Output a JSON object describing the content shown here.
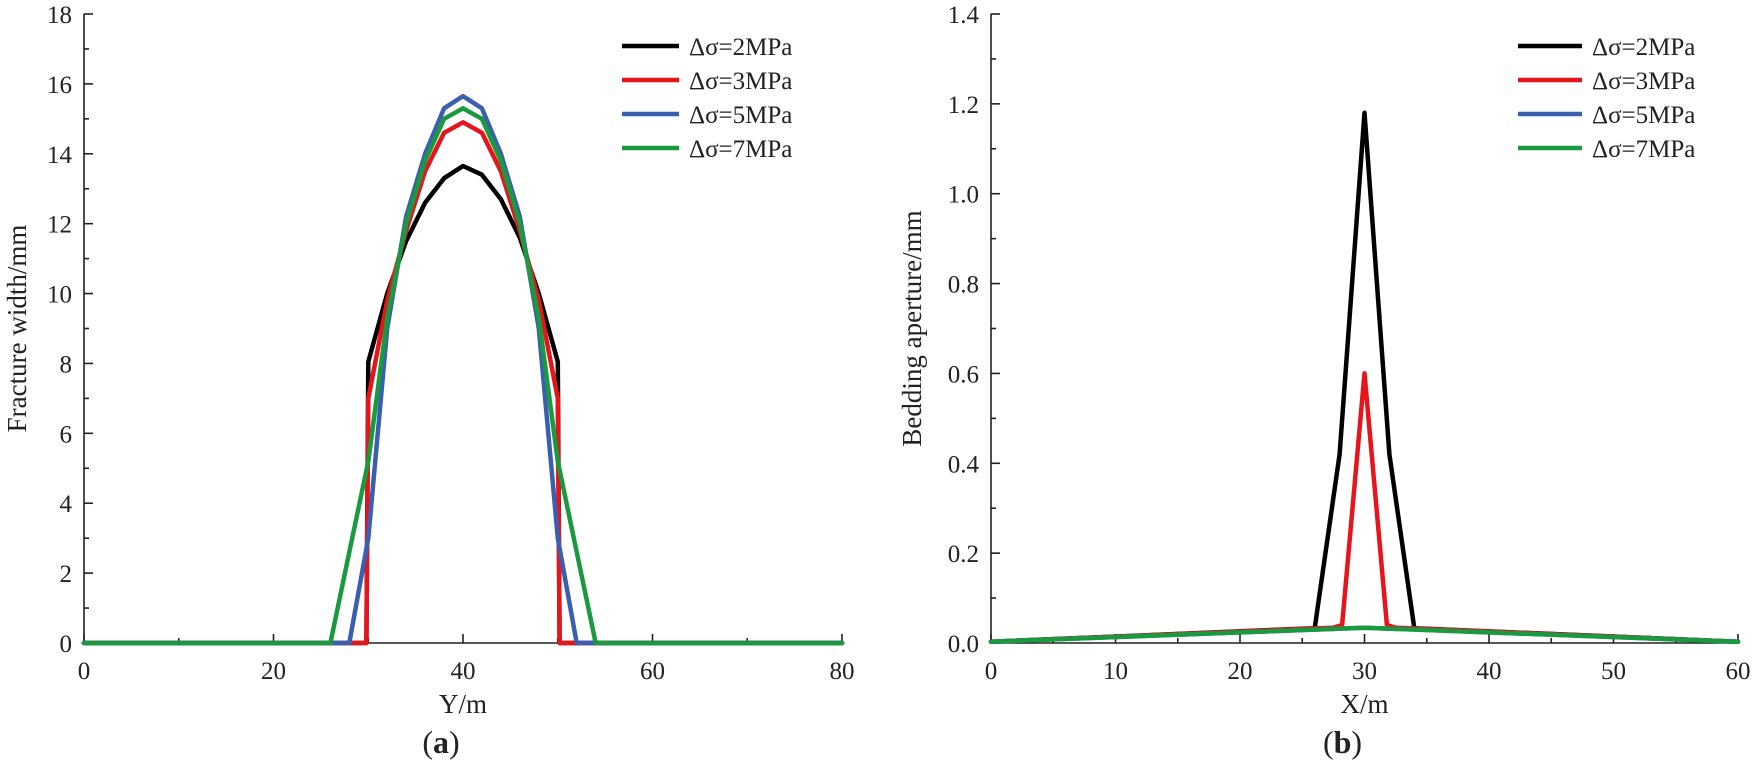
{
  "chart_data": [
    {
      "type": "line",
      "panel_label": "(a)",
      "xlabel": "Y/m",
      "ylabel": "Fracture width/mm",
      "xlim": [
        0,
        80
      ],
      "ylim": [
        0,
        18
      ],
      "xticks": [
        "0",
        "20",
        "40",
        "60",
        "80"
      ],
      "yticks": [
        "0",
        "2",
        "4",
        "6",
        "8",
        "10",
        "12",
        "14",
        "16",
        "18"
      ],
      "xtick_values": [
        0,
        20,
        40,
        60,
        80
      ],
      "ytick_values": [
        0,
        2,
        4,
        6,
        8,
        10,
        12,
        14,
        16,
        18
      ],
      "legend_position": "top-right",
      "series": [
        {
          "name": "Δσ=2MPa",
          "color": "#000000",
          "points": [
            [
              0,
              0
            ],
            [
              29.8,
              0
            ],
            [
              30,
              8.05
            ],
            [
              32,
              10.0
            ],
            [
              34,
              11.5
            ],
            [
              36,
              12.6
            ],
            [
              38,
              13.3
            ],
            [
              40,
              13.65
            ],
            [
              42,
              13.4
            ],
            [
              44,
              12.7
            ],
            [
              46,
              11.6
            ],
            [
              48,
              10.0
            ],
            [
              50,
              8.05
            ],
            [
              50.2,
              0
            ],
            [
              80,
              0
            ]
          ]
        },
        {
          "name": "Δσ=3MPa",
          "color": "#e8141c",
          "points": [
            [
              0,
              0
            ],
            [
              29.8,
              0
            ],
            [
              30,
              7.0
            ],
            [
              32,
              9.8
            ],
            [
              34,
              11.8
            ],
            [
              36,
              13.5
            ],
            [
              38,
              14.6
            ],
            [
              40,
              14.9
            ],
            [
              42,
              14.6
            ],
            [
              44,
              13.5
            ],
            [
              46,
              11.8
            ],
            [
              48,
              9.8
            ],
            [
              50,
              7.0
            ],
            [
              50.2,
              0
            ],
            [
              80,
              0
            ]
          ]
        },
        {
          "name": "Δσ=5MPa",
          "color": "#3a5fb0",
          "points": [
            [
              0,
              0
            ],
            [
              28,
              0
            ],
            [
              30,
              3.0
            ],
            [
              32,
              9.0
            ],
            [
              34,
              12.2
            ],
            [
              36,
              14.0
            ],
            [
              38,
              15.3
            ],
            [
              40,
              15.65
            ],
            [
              42,
              15.3
            ],
            [
              44,
              14.0
            ],
            [
              46,
              12.2
            ],
            [
              48,
              9.0
            ],
            [
              50,
              3.0
            ],
            [
              52,
              0
            ],
            [
              80,
              0
            ]
          ]
        },
        {
          "name": "Δσ=7MPa",
          "color": "#1a9a3e",
          "points": [
            [
              0,
              0
            ],
            [
              26,
              0
            ],
            [
              28,
              2.6
            ],
            [
              30,
              5.2
            ],
            [
              32,
              9.3
            ],
            [
              34,
              12.0
            ],
            [
              36,
              13.8
            ],
            [
              38,
              15.0
            ],
            [
              40,
              15.3
            ],
            [
              42,
              15.0
            ],
            [
              44,
              13.8
            ],
            [
              46,
              12.0
            ],
            [
              48,
              9.3
            ],
            [
              50,
              5.2
            ],
            [
              52,
              2.6
            ],
            [
              54,
              0
            ],
            [
              80,
              0
            ]
          ]
        }
      ]
    },
    {
      "type": "line",
      "panel_label": "(b)",
      "xlabel": "X/m",
      "ylabel": "Bedding aperture/mm",
      "xlim": [
        0,
        60
      ],
      "ylim": [
        0,
        1.4
      ],
      "xticks": [
        "0",
        "10",
        "20",
        "30",
        "40",
        "50",
        "60"
      ],
      "yticks": [
        "0.0",
        "0.2",
        "0.4",
        "0.6",
        "0.8",
        "1.0",
        "1.2",
        "1.4"
      ],
      "xtick_values": [
        0,
        10,
        20,
        30,
        40,
        50,
        60
      ],
      "ytick_values": [
        0,
        0.2,
        0.4,
        0.6,
        0.8,
        1.0,
        1.2,
        1.4
      ],
      "legend_position": "top-right",
      "series": [
        {
          "name": "Δσ=2MPa",
          "color": "#000000",
          "points": [
            [
              0,
              0.003
            ],
            [
              26,
              0.033
            ],
            [
              28,
              0.42
            ],
            [
              30,
              1.18
            ],
            [
              32,
              0.42
            ],
            [
              34,
              0.033
            ],
            [
              60,
              0.003
            ]
          ]
        },
        {
          "name": "Δσ=3MPa",
          "color": "#e8141c",
          "points": [
            [
              0,
              0.003
            ],
            [
              27.5,
              0.034
            ],
            [
              28.2,
              0.04
            ],
            [
              30,
              0.6
            ],
            [
              31.8,
              0.04
            ],
            [
              32.5,
              0.034
            ],
            [
              60,
              0.003
            ]
          ]
        },
        {
          "name": "Δσ=5MPa",
          "color": "#3a5fb0",
          "points": [
            [
              0,
              0.003
            ],
            [
              30,
              0.034
            ],
            [
              60,
              0.003
            ]
          ]
        },
        {
          "name": "Δσ=7MPa",
          "color": "#1a9a3e",
          "points": [
            [
              0,
              0.003
            ],
            [
              30,
              0.034
            ],
            [
              60,
              0.003
            ]
          ]
        }
      ]
    }
  ]
}
